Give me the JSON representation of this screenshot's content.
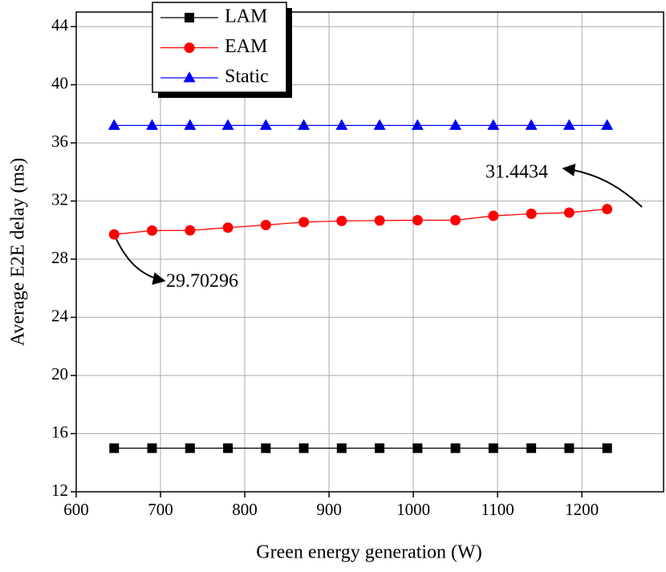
{
  "chart_data": {
    "type": "line",
    "xlabel": "Green energy generation (W)",
    "ylabel": "Average E2E delay (ms)",
    "x": [
      645,
      690,
      735,
      780,
      825,
      870,
      915,
      960,
      1005,
      1050,
      1095,
      1140,
      1185,
      1230
    ],
    "series": [
      {
        "name": "LAM",
        "color": "#000000",
        "marker": "square",
        "values": [
          15,
          15,
          15,
          15,
          15,
          15,
          15,
          15,
          15,
          15,
          15,
          15,
          15,
          15
        ]
      },
      {
        "name": "EAM",
        "color": "#ff0000",
        "marker": "circle",
        "values": [
          29.70296,
          29.97,
          29.98,
          30.17,
          30.35,
          30.55,
          30.63,
          30.66,
          30.68,
          30.68,
          30.98,
          31.12,
          31.2,
          31.4434
        ]
      },
      {
        "name": "Static",
        "color": "#0000ff",
        "marker": "triangle",
        "values": [
          37.2,
          37.2,
          37.2,
          37.2,
          37.2,
          37.2,
          37.2,
          37.2,
          37.2,
          37.2,
          37.2,
          37.2,
          37.2,
          37.2
        ]
      }
    ],
    "xlim": [
      600,
      1297
    ],
    "xticks": [
      600,
      700,
      800,
      900,
      1000,
      1100,
      1200
    ],
    "ylim": [
      12,
      45
    ],
    "yticks": [
      12,
      16,
      20,
      24,
      28,
      32,
      36,
      40,
      44
    ],
    "grid": true,
    "legend": "upper left",
    "annotations": [
      {
        "text": "31.4434"
      },
      {
        "text": "29.70296"
      }
    ]
  }
}
